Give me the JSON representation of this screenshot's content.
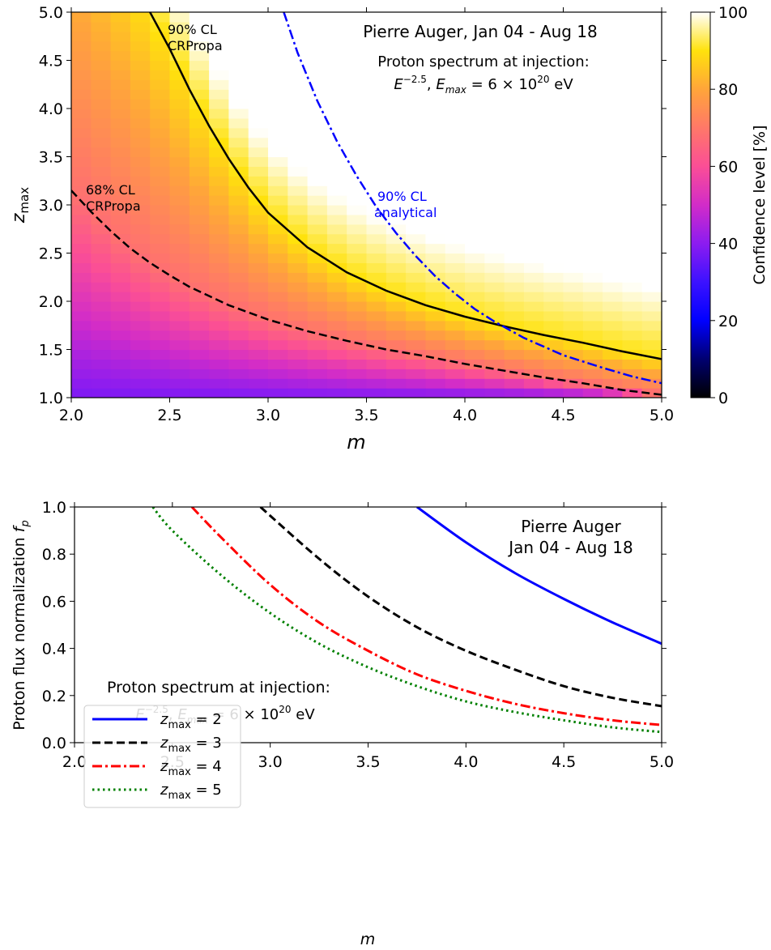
{
  "chart_data": [
    {
      "type": "heatmap",
      "xlabel": "m",
      "ylabel": "z_max",
      "xlim": [
        2.0,
        5.0
      ],
      "ylim": [
        1.0,
        5.0
      ],
      "x_ticks": [
        "2.0",
        "2.5",
        "3.0",
        "3.5",
        "4.0",
        "4.5",
        "5.0"
      ],
      "y_ticks": [
        "1.0",
        "1.5",
        "2.0",
        "2.5",
        "3.0",
        "3.5",
        "4.0",
        "4.5",
        "5.0"
      ],
      "colorbar": {
        "label": "Confidence level [%]",
        "range": [
          0,
          100
        ],
        "ticks": [
          "0",
          "20",
          "40",
          "60",
          "80",
          "100"
        ],
        "colormap": "gnuplot2"
      },
      "annotations": {
        "title": "Pierre Auger, Jan 04 - Aug 18",
        "injection_line1": "Proton spectrum at injection:",
        "injection_line2": "E^{-2.5}, E_max = 6 × 10^20 eV",
        "cl90_crpropa_1": "90% CL",
        "cl90_crpropa_2": "CRPropa",
        "cl68_crpropa_1": "68% CL",
        "cl68_crpropa_2": "CRPropa",
        "cl90_analytical_1": "90% CL",
        "cl90_analytical_2": "analytical"
      },
      "contours": [
        {
          "label": "90% CL CRPropa",
          "style": "solid",
          "color": "#000000",
          "x": [
            2.4,
            2.5,
            2.6,
            2.7,
            2.8,
            2.9,
            3.0,
            3.2,
            3.4,
            3.6,
            3.8,
            4.0,
            4.2,
            4.4,
            4.6,
            4.8,
            5.0
          ],
          "y": [
            5.0,
            4.62,
            4.2,
            3.82,
            3.48,
            3.18,
            2.92,
            2.56,
            2.3,
            2.11,
            1.96,
            1.84,
            1.74,
            1.65,
            1.57,
            1.48,
            1.4
          ]
        },
        {
          "label": "68% CL CRPropa",
          "style": "dashed",
          "color": "#000000",
          "x": [
            2.0,
            2.1,
            2.2,
            2.3,
            2.4,
            2.5,
            2.6,
            2.8,
            3.0,
            3.2,
            3.4,
            3.6,
            3.8,
            4.0,
            4.2,
            4.4,
            4.6,
            4.8,
            5.0
          ],
          "y": [
            3.15,
            2.93,
            2.73,
            2.55,
            2.4,
            2.27,
            2.15,
            1.96,
            1.81,
            1.69,
            1.59,
            1.5,
            1.43,
            1.35,
            1.28,
            1.21,
            1.15,
            1.08,
            1.03
          ]
        },
        {
          "label": "90% CL analytical",
          "style": "dashdot",
          "color": "#0000ff",
          "x": [
            3.08,
            3.15,
            3.25,
            3.35,
            3.45,
            3.55,
            3.65,
            3.75,
            3.85,
            3.95,
            4.05,
            4.15,
            4.3,
            4.5,
            4.7,
            4.85,
            5.0
          ],
          "y": [
            5.0,
            4.58,
            4.08,
            3.66,
            3.3,
            2.98,
            2.71,
            2.47,
            2.26,
            2.08,
            1.92,
            1.79,
            1.62,
            1.44,
            1.31,
            1.22,
            1.15
          ]
        }
      ]
    },
    {
      "type": "line",
      "xlabel": "m",
      "ylabel": "Proton flux normalization f_p",
      "xlim": [
        2.0,
        5.0
      ],
      "ylim": [
        0.0,
        1.0
      ],
      "x_ticks": [
        "2.0",
        "2.5",
        "3.0",
        "3.5",
        "4.0",
        "4.5",
        "5.0"
      ],
      "y_ticks": [
        "0.0",
        "0.2",
        "0.4",
        "0.6",
        "0.8",
        "1.0"
      ],
      "legend_placement": "center-left",
      "annotations": {
        "title_line1": "Pierre Auger",
        "title_line2": "Jan 04 - Aug 18",
        "injection_line1": "Proton spectrum at injection:",
        "injection_line2": "E^{-2.5}, E_max = 6 × 10^20 eV"
      },
      "series": [
        {
          "name": "z_max = 2",
          "legend_value": "2",
          "color": "#0000ff",
          "style": "solid",
          "x": [
            3.75,
            4.0,
            4.25,
            4.5,
            4.75,
            5.0
          ],
          "y": [
            1.0,
            0.85,
            0.72,
            0.61,
            0.51,
            0.42
          ]
        },
        {
          "name": "z_max = 3",
          "legend_value": "3",
          "color": "#000000",
          "style": "dashed",
          "x": [
            2.95,
            3.25,
            3.5,
            3.75,
            4.0,
            4.25,
            4.5,
            4.75,
            5.0
          ],
          "y": [
            1.0,
            0.78,
            0.62,
            0.49,
            0.39,
            0.31,
            0.24,
            0.19,
            0.155
          ]
        },
        {
          "name": "z_max = 4",
          "legend_value": "4",
          "color": "#ff0000",
          "style": "dashdot",
          "x": [
            2.6,
            2.75,
            3.0,
            3.25,
            3.5,
            3.75,
            4.0,
            4.25,
            4.5,
            4.75,
            5.0
          ],
          "y": [
            1.0,
            0.87,
            0.67,
            0.51,
            0.39,
            0.29,
            0.22,
            0.165,
            0.125,
            0.095,
            0.075
          ]
        },
        {
          "name": "z_max = 5",
          "legend_value": "5",
          "color": "#008000",
          "style": "dotted",
          "x": [
            2.4,
            2.5,
            2.75,
            3.0,
            3.25,
            3.5,
            3.75,
            4.0,
            4.25,
            4.5,
            4.75,
            5.0
          ],
          "y": [
            1.0,
            0.9,
            0.71,
            0.55,
            0.42,
            0.32,
            0.24,
            0.175,
            0.13,
            0.095,
            0.065,
            0.045
          ]
        }
      ]
    }
  ]
}
